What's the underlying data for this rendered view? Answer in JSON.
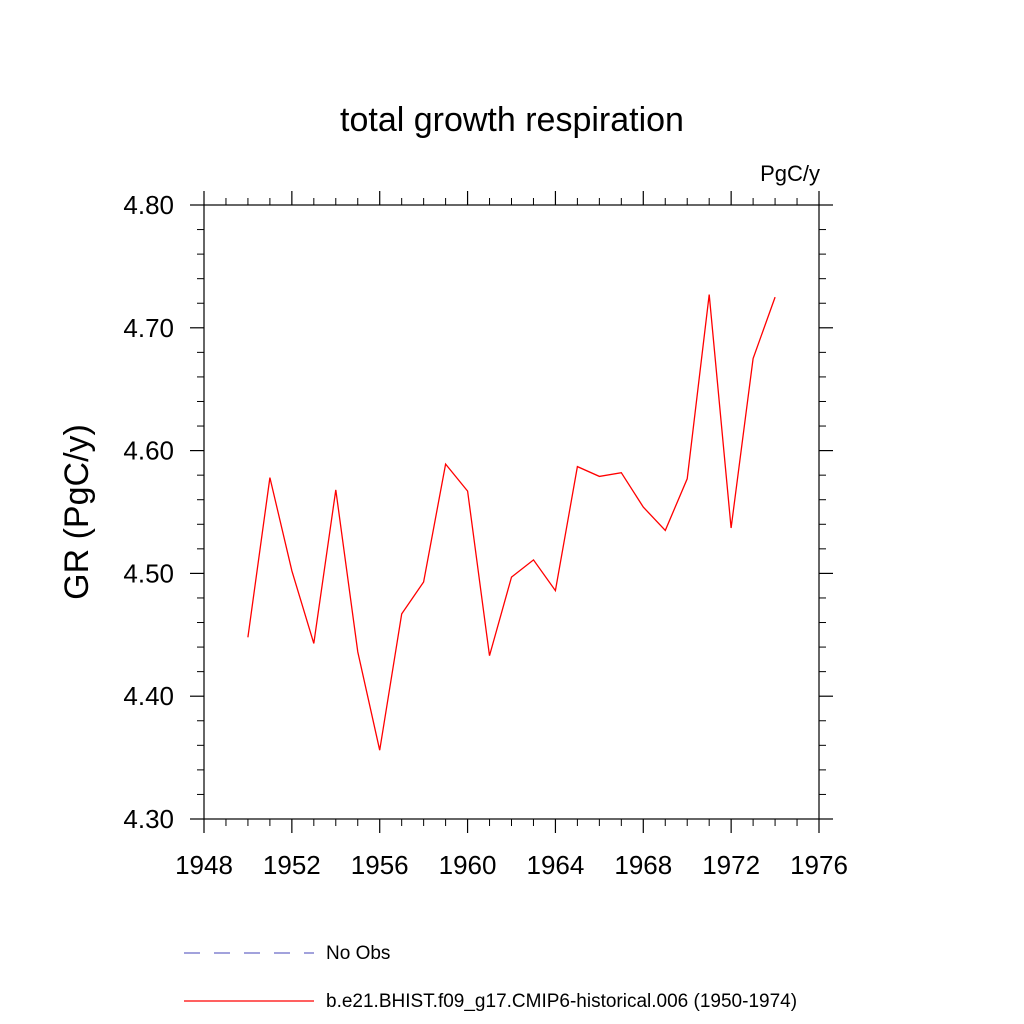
{
  "chart_data": {
    "type": "line",
    "title": "total growth respiration",
    "units_label": "PgC/y",
    "ylabel": "GR  (PgC/y)",
    "xlabel": "",
    "xlim": [
      1948,
      1976
    ],
    "ylim": [
      4.3,
      4.8
    ],
    "x_ticks": [
      "1948",
      "1952",
      "1956",
      "1960",
      "1964",
      "1968",
      "1972",
      "1976"
    ],
    "y_ticks": [
      "4.30",
      "4.40",
      "4.50",
      "4.60",
      "4.70",
      "4.80"
    ],
    "series": [
      {
        "name": "b.e21.BHIST.f09_g17.CMIP6-historical.006 (1950-1974)",
        "color": "#ff0000",
        "style": "solid",
        "x": [
          1950,
          1951,
          1952,
          1953,
          1954,
          1955,
          1956,
          1957,
          1958,
          1959,
          1960,
          1961,
          1962,
          1963,
          1964,
          1965,
          1966,
          1967,
          1968,
          1969,
          1970,
          1971,
          1972,
          1973,
          1974
        ],
        "y": [
          4.448,
          4.578,
          4.502,
          4.443,
          4.568,
          4.436,
          4.356,
          4.467,
          4.493,
          4.589,
          4.567,
          4.433,
          4.497,
          4.511,
          4.486,
          4.587,
          4.579,
          4.582,
          4.554,
          4.535,
          4.577,
          4.727,
          4.537,
          4.675,
          4.725
        ]
      }
    ],
    "legend": [
      {
        "label": "No Obs",
        "color": "#6a6ac8",
        "style": "dashed"
      },
      {
        "label": "b.e21.BHIST.f09_g17.CMIP6-historical.006 (1950-1974)",
        "color": "#ff0000",
        "style": "solid"
      }
    ],
    "legend_position": "bottom",
    "grid": false
  }
}
